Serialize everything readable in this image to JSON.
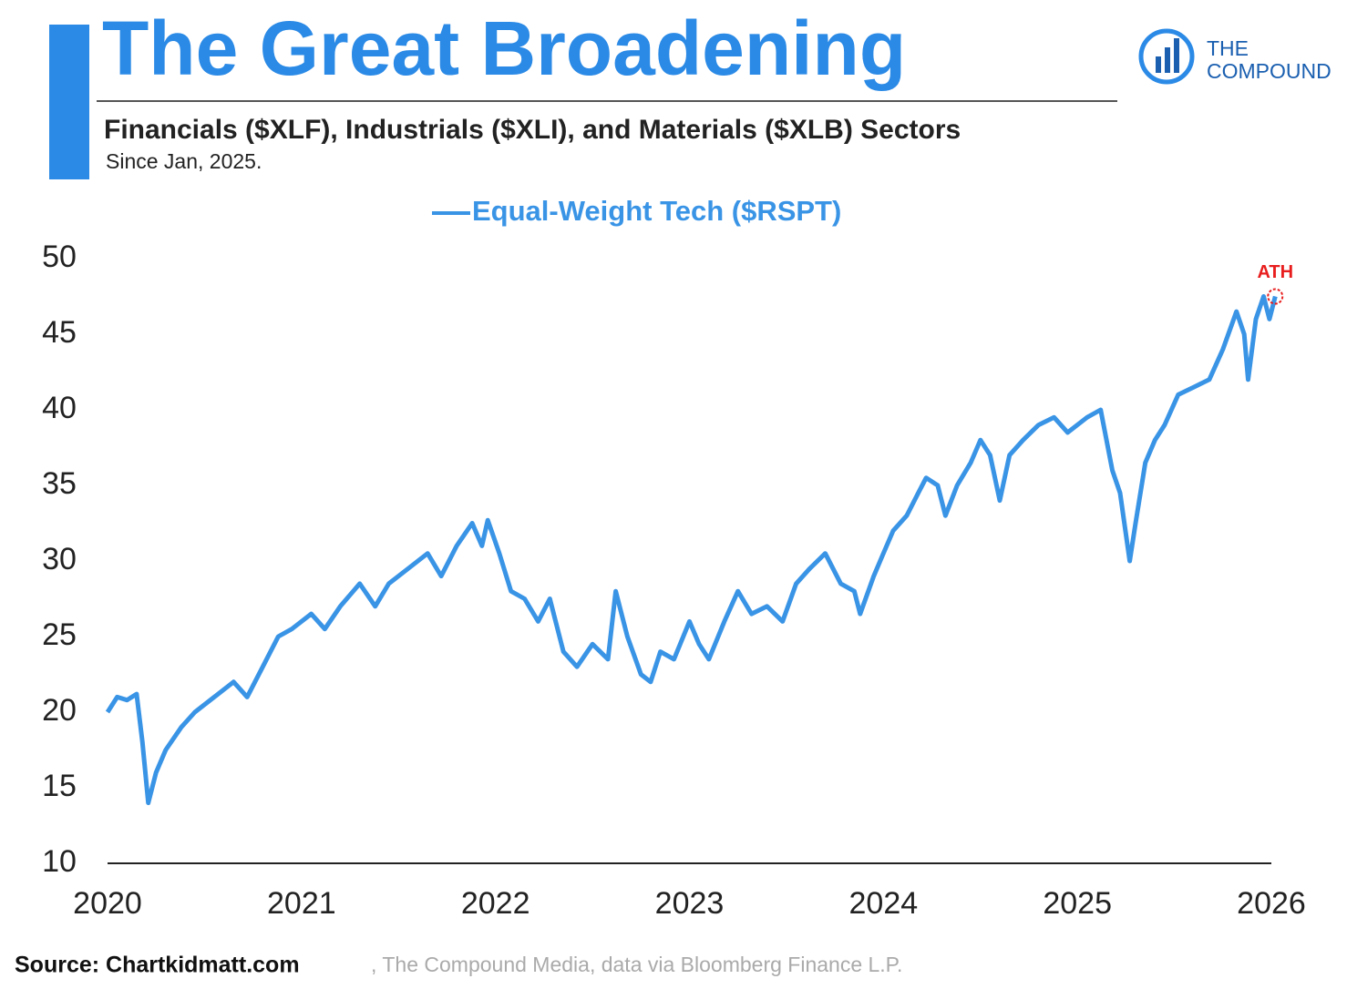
{
  "logo": {
    "line1": "THE",
    "line2": "COMPOUND"
  },
  "source": {
    "bold": "Source: Chartkidmatt.com",
    "rest": ", The Compound Media, data via Bloomberg Finance L.P."
  },
  "chart_data": {
    "type": "line",
    "title": "The Great Broadening",
    "subtitle": "Financials ($XLF), Industrials ($XLI), and Materials ($XLB) Sectors",
    "note": "Since Jan, 2025.",
    "annotation": "ATH",
    "xlim": [
      2020,
      2026
    ],
    "xticks": [
      2020,
      2021,
      2022,
      2023,
      2024,
      2025,
      2026
    ],
    "ylim": [
      10,
      50
    ],
    "yticks": [
      10,
      15,
      20,
      25,
      30,
      35,
      40,
      45,
      50
    ],
    "x": [
      2020.0,
      2020.05,
      2020.1,
      2020.15,
      2020.18,
      2020.21,
      2020.25,
      2020.3,
      2020.38,
      2020.45,
      2020.55,
      2020.65,
      2020.72,
      2020.8,
      2020.88,
      2020.95,
      2021.05,
      2021.12,
      2021.2,
      2021.3,
      2021.38,
      2021.45,
      2021.55,
      2021.65,
      2021.72,
      2021.8,
      2021.88,
      2021.93,
      2021.96,
      2022.02,
      2022.08,
      2022.15,
      2022.22,
      2022.28,
      2022.35,
      2022.42,
      2022.5,
      2022.58,
      2022.62,
      2022.68,
      2022.75,
      2022.8,
      2022.85,
      2022.92,
      2023.0,
      2023.05,
      2023.1,
      2023.18,
      2023.25,
      2023.32,
      2023.4,
      2023.48,
      2023.55,
      2023.62,
      2023.7,
      2023.78,
      2023.85,
      2023.88,
      2023.95,
      2024.0,
      2024.05,
      2024.12,
      2024.18,
      2024.22,
      2024.28,
      2024.32,
      2024.38,
      2024.45,
      2024.5,
      2024.55,
      2024.6,
      2024.65,
      2024.72,
      2024.8,
      2024.88,
      2024.95,
      2025.05,
      2025.12,
      2025.18,
      2025.22,
      2025.27,
      2025.3,
      2025.35,
      2025.4,
      2025.45,
      2025.52,
      2025.6,
      2025.68,
      2025.75,
      2025.82,
      2025.86,
      2025.88,
      2025.92,
      2025.96,
      2025.99,
      2026.02
    ],
    "series": [
      {
        "name": "Equal-Weight Tech ($RSPT)",
        "color": "#3a94e6",
        "values": [
          20,
          21,
          20.8,
          21.2,
          18,
          14,
          16,
          17.5,
          19,
          20,
          21,
          22,
          21,
          23,
          25,
          25.5,
          26.5,
          25.5,
          27,
          28.5,
          27,
          28.5,
          29.5,
          30.5,
          29,
          31,
          32.5,
          31,
          32.7,
          30.5,
          28,
          27.5,
          26,
          27.5,
          24,
          23,
          24.5,
          23.5,
          28,
          25,
          22.5,
          22,
          24,
          23.5,
          26,
          24.5,
          23.5,
          26,
          28,
          26.5,
          27,
          26,
          28.5,
          29.5,
          30.5,
          28.5,
          28,
          26.5,
          29,
          30.5,
          32,
          33,
          34.5,
          35.5,
          35,
          33,
          35,
          36.5,
          38,
          37,
          34,
          37,
          38,
          39,
          39.5,
          38.5,
          39.5,
          40,
          36,
          34.5,
          30,
          32.5,
          36.5,
          38,
          39,
          41,
          41.5,
          42,
          44,
          46.5,
          45,
          42,
          46,
          47.5,
          46,
          47.5
        ]
      }
    ],
    "annotation_color": "#e81e1e"
  }
}
